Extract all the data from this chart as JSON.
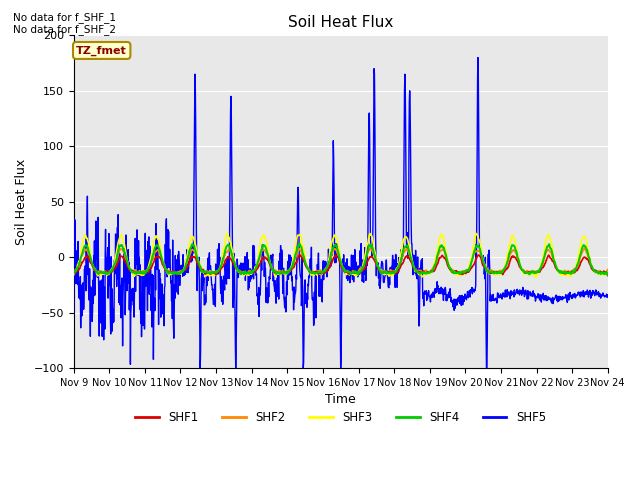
{
  "title": "Soil Heat Flux",
  "ylabel": "Soil Heat Flux",
  "xlabel": "Time",
  "ylim": [
    -100,
    200
  ],
  "bg_color": "#e8e8e8",
  "note1": "No data for f_SHF_1",
  "note2": "No data for f_SHF_2",
  "tz_label": "TZ_fmet",
  "legend_entries": [
    "SHF1",
    "SHF2",
    "SHF3",
    "SHF4",
    "SHF5"
  ],
  "legend_colors": [
    "#dd0000",
    "#ff8800",
    "#ffff00",
    "#00cc00",
    "#0000ff"
  ],
  "x_tick_labels": [
    "Nov 9",
    "Nov 10",
    "Nov 11",
    "Nov 12",
    "Nov 13",
    "Nov 14",
    "Nov 15",
    "Nov 16",
    "Nov 17",
    "Nov 18",
    "Nov 19",
    "Nov 20",
    "Nov 21",
    "Nov 22",
    "Nov 23",
    "Nov 24"
  ],
  "x_tick_positions": [
    0,
    1,
    2,
    3,
    4,
    5,
    6,
    7,
    8,
    9,
    10,
    11,
    12,
    13,
    14,
    15
  ],
  "figsize": [
    6.4,
    4.8
  ],
  "dpi": 100
}
